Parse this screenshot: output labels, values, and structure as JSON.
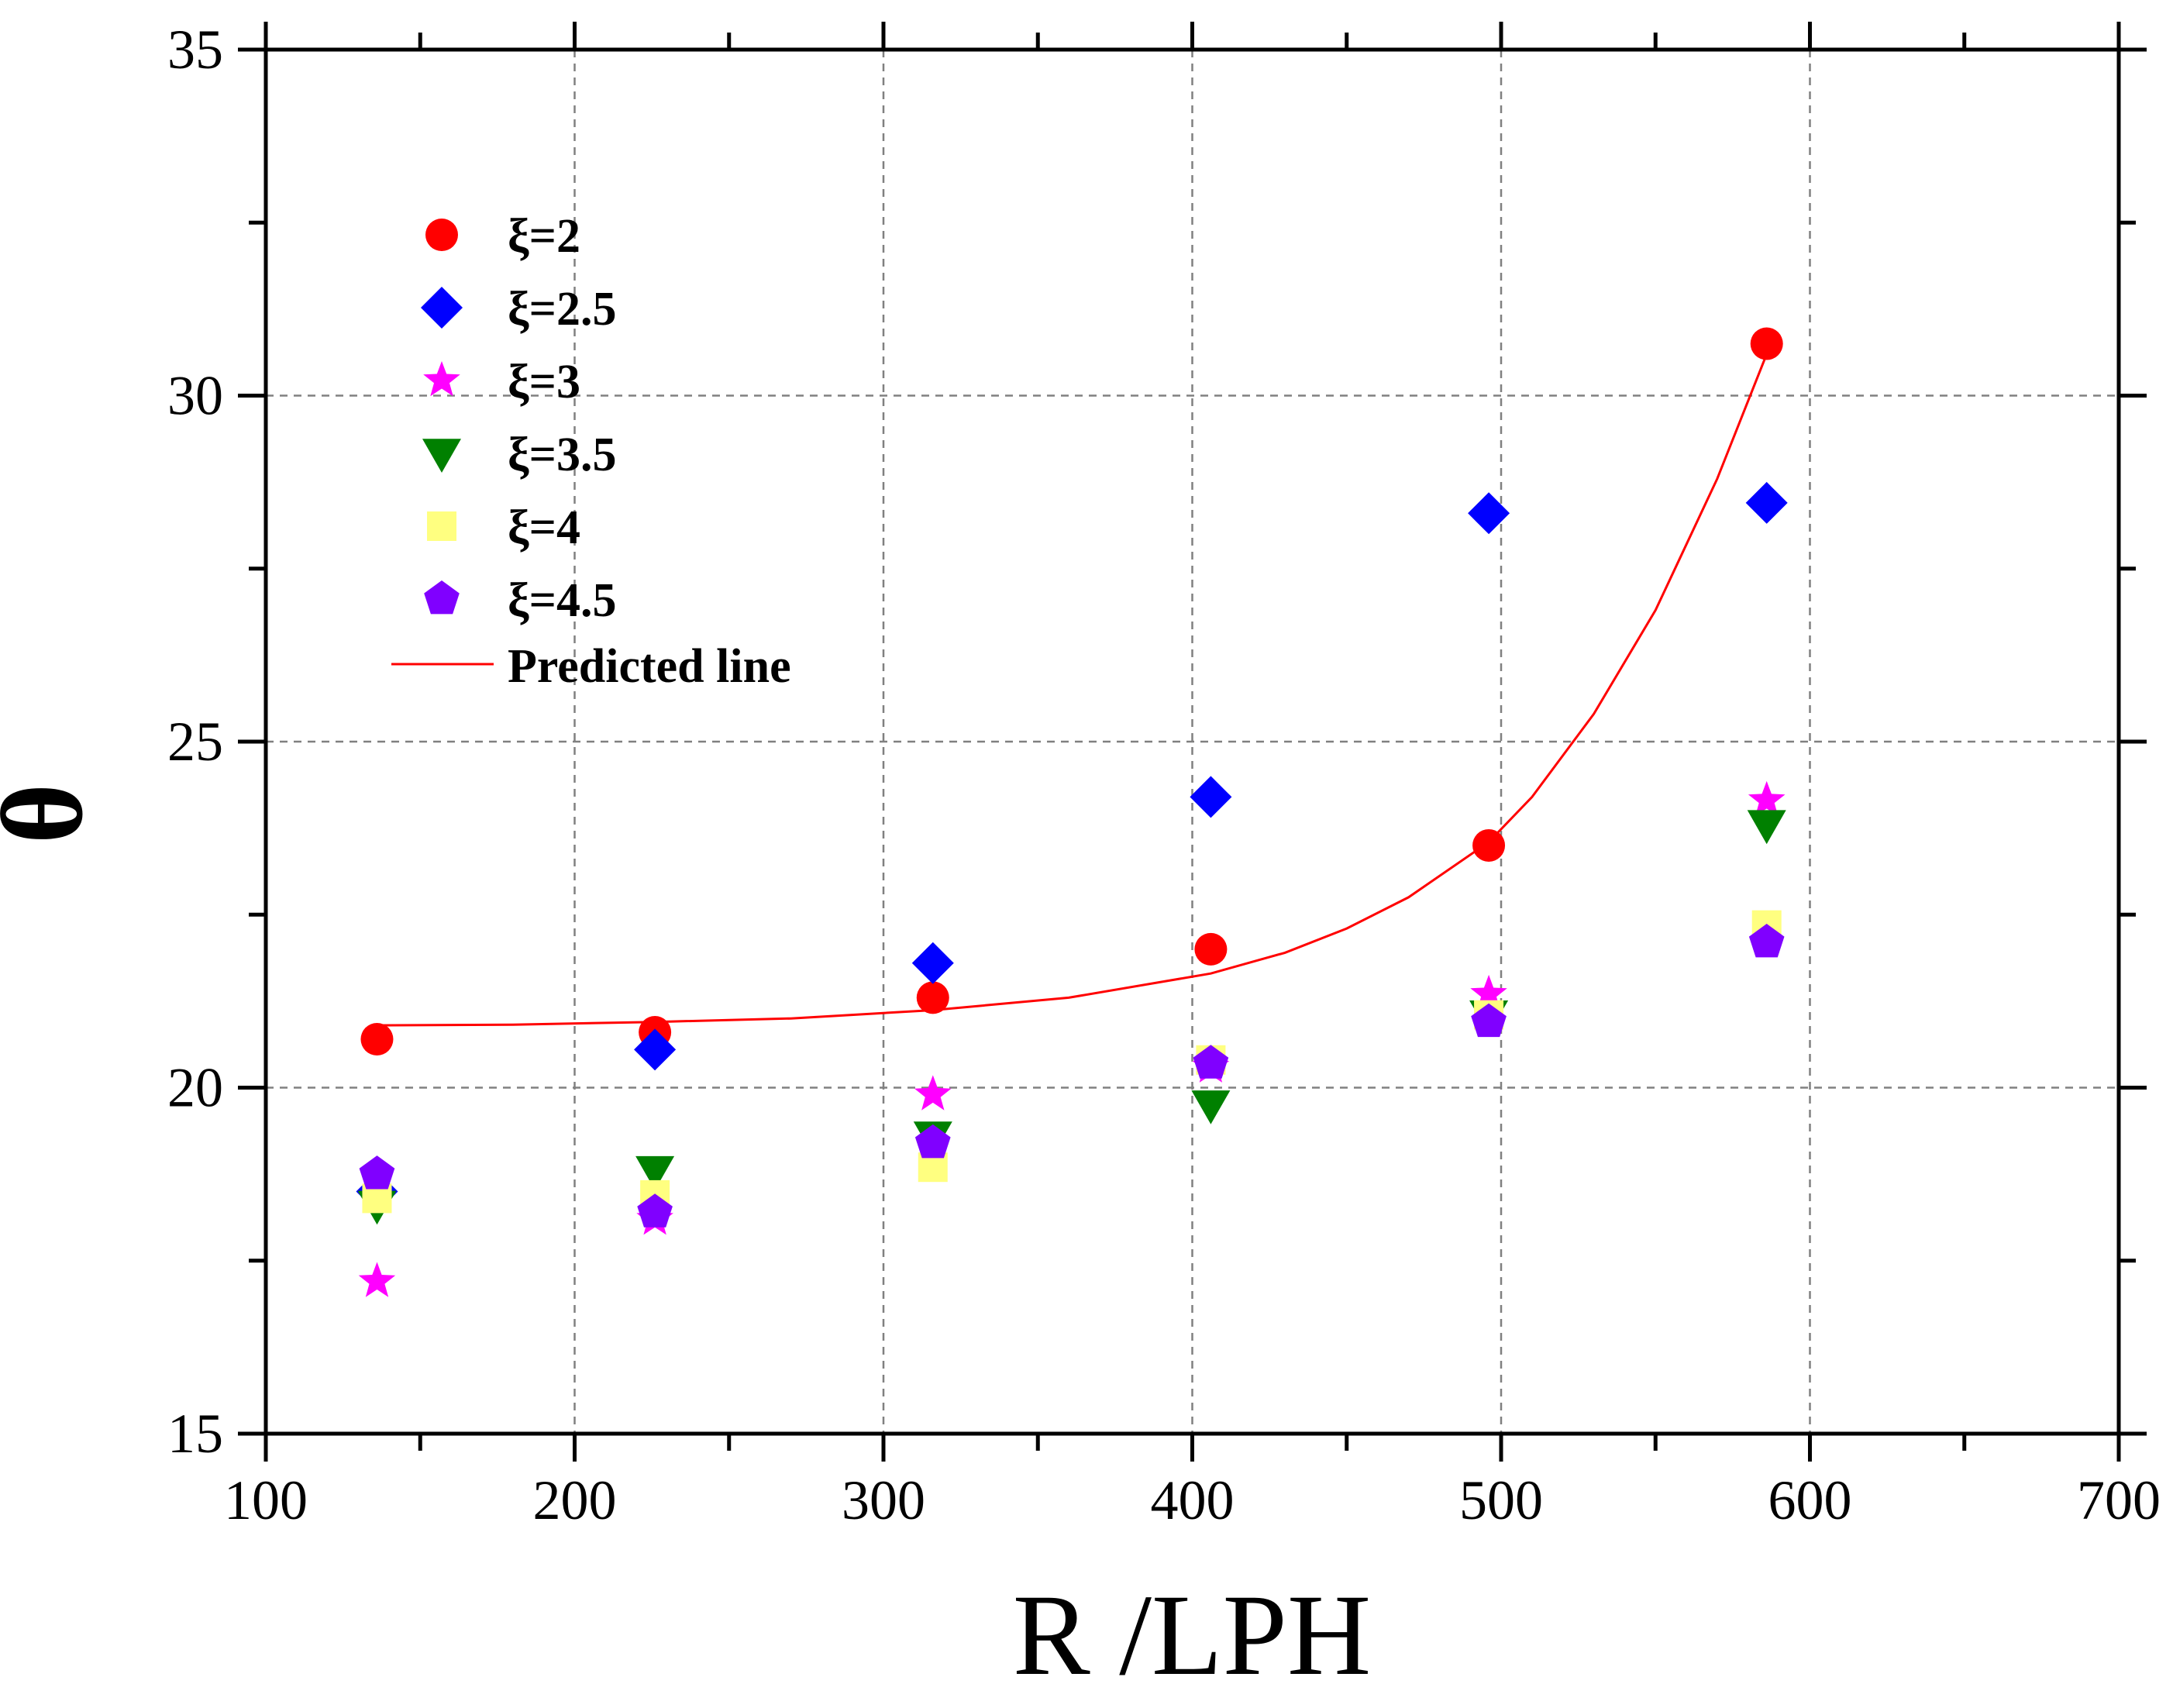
{
  "chart_data": {
    "type": "scatter",
    "title": "",
    "xlabel": "R /LPH",
    "ylabel": "θ",
    "xlim": [
      100,
      700
    ],
    "ylim": [
      15,
      35
    ],
    "xticks": [
      100,
      200,
      300,
      400,
      500,
      600,
      700
    ],
    "yticks": [
      15,
      20,
      25,
      30,
      35
    ],
    "x_minor_step": 50,
    "y_minor_step": 2.5,
    "grid": true,
    "legend_position": "top-left",
    "series": [
      {
        "name": "ξ=2",
        "marker": "circle",
        "color": "#ff0000",
        "x": [
          136,
          226,
          316,
          406,
          496,
          586
        ],
        "y": [
          20.7,
          20.8,
          21.3,
          22.0,
          23.5,
          30.75
        ]
      },
      {
        "name": "ξ=2.5",
        "marker": "diamond",
        "color": "#0000ff",
        "x": [
          136,
          226,
          316,
          406,
          496,
          586
        ],
        "y": [
          18.5,
          20.55,
          21.8,
          24.2,
          28.3,
          28.45
        ]
      },
      {
        "name": "ξ=3",
        "marker": "star",
        "color": "#ff00ff",
        "x": [
          136,
          226,
          316,
          406,
          496,
          586
        ],
        "y": [
          17.2,
          18.1,
          19.9,
          20.3,
          21.35,
          24.15
        ]
      },
      {
        "name": "ξ=3.5",
        "marker": "triangle-down",
        "color": "#008000",
        "x": [
          136,
          226,
          316,
          406,
          496,
          586
        ],
        "y": [
          18.3,
          18.8,
          19.3,
          19.75,
          21.05,
          23.8
        ]
      },
      {
        "name": "ξ=4",
        "marker": "square",
        "color": "#ffff80",
        "x": [
          136,
          226,
          316,
          406,
          496,
          586
        ],
        "y": [
          18.4,
          18.45,
          18.85,
          20.4,
          21.05,
          22.35
        ]
      },
      {
        "name": "ξ=4.5",
        "marker": "pentagon",
        "color": "#8000ff",
        "x": [
          136,
          226,
          316,
          406,
          496,
          586
        ],
        "y": [
          18.75,
          18.2,
          19.2,
          20.35,
          20.95,
          22.1
        ]
      }
    ],
    "predicted_line": {
      "name": "Predicted line",
      "color": "#ff0000",
      "x": [
        136,
        180,
        226,
        270,
        316,
        360,
        406,
        430,
        450,
        470,
        496,
        510,
        530,
        550,
        570,
        586
      ],
      "y": [
        20.9,
        20.91,
        20.95,
        21.0,
        21.12,
        21.3,
        21.65,
        21.95,
        22.3,
        22.75,
        23.55,
        24.2,
        25.4,
        26.9,
        28.8,
        30.6
      ]
    }
  }
}
